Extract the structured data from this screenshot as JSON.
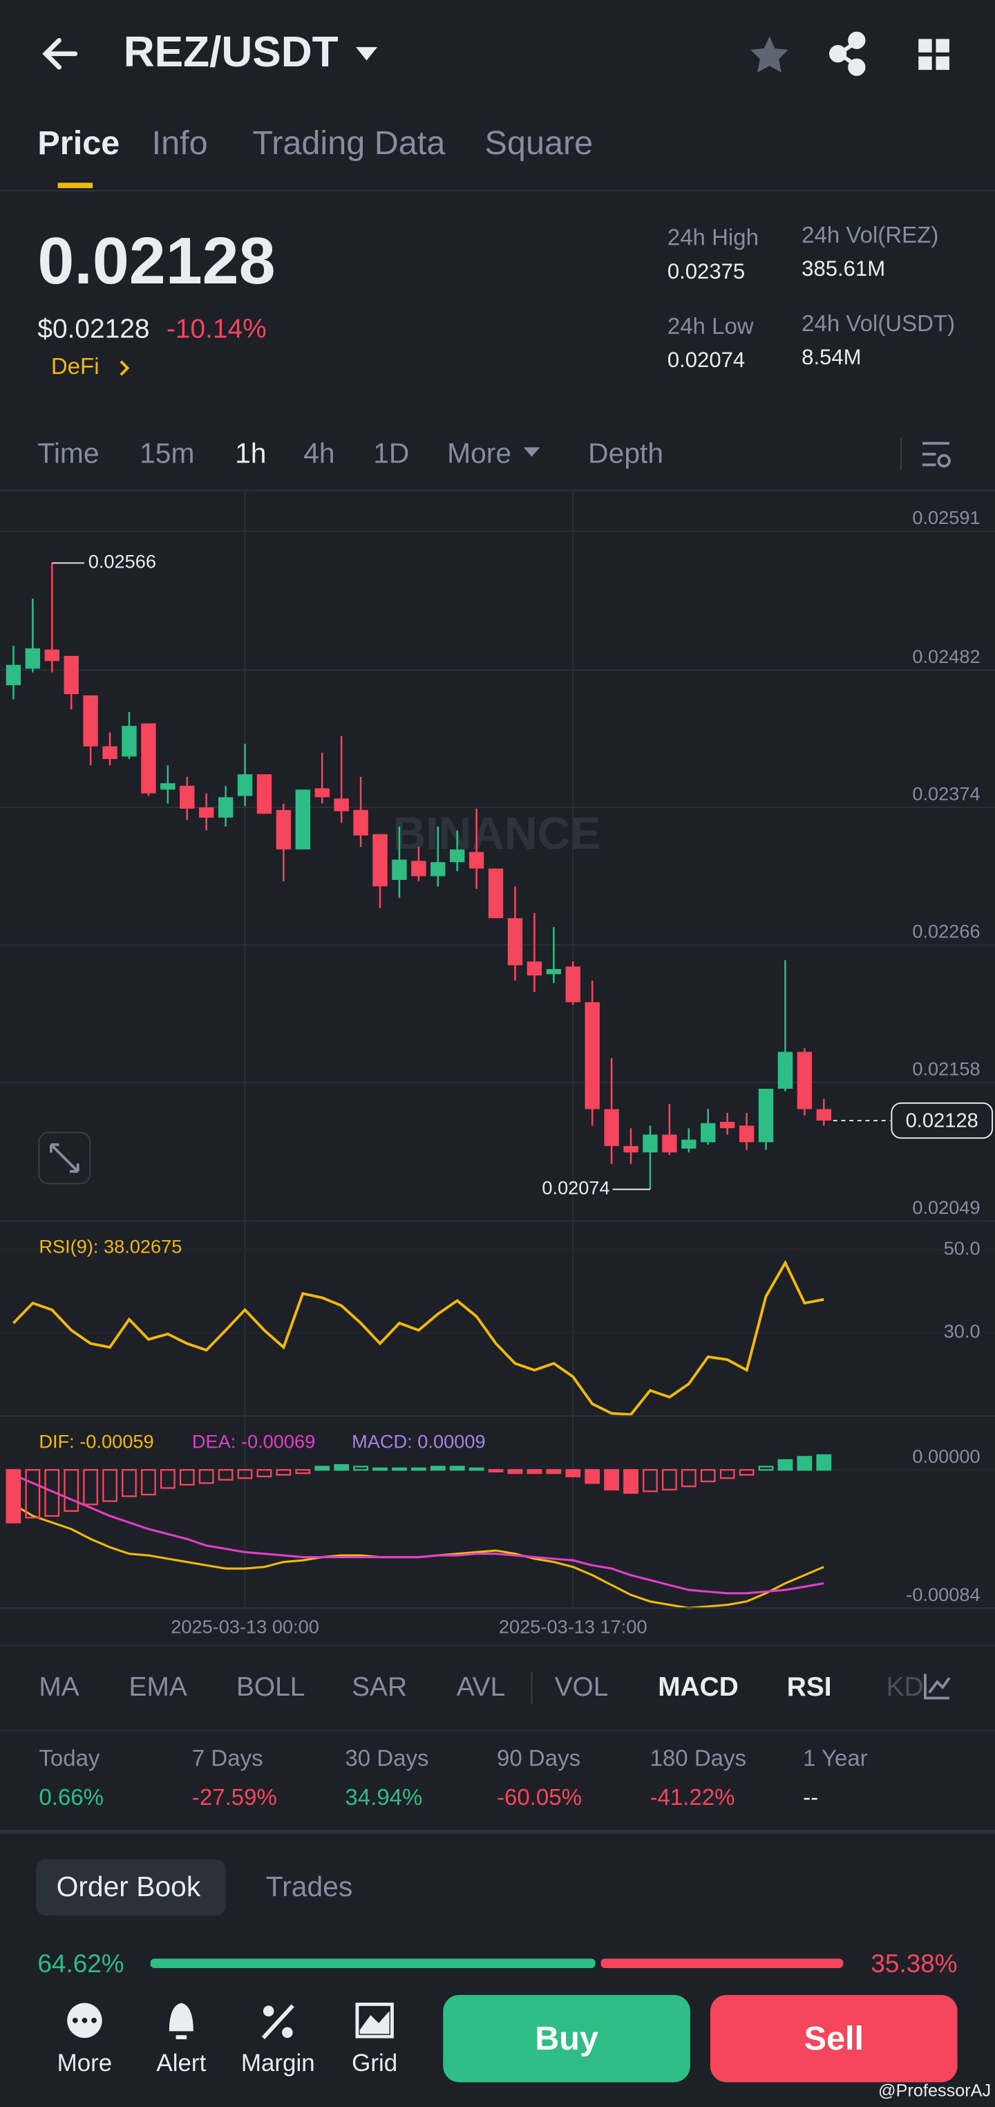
{
  "header": {
    "pair": "REZ/USDT"
  },
  "tabs": [
    "Price",
    "Info",
    "Trading Data",
    "Square"
  ],
  "ticker": {
    "price": "0.02128",
    "fiat_price": "$0.02128",
    "change": "-10.14%",
    "tag": "DeFi",
    "stats": [
      {
        "label": "24h High",
        "value": "0.02375"
      },
      {
        "label": "24h Low",
        "value": "0.02074"
      },
      {
        "label": "24h Vol(REZ)",
        "value": "385.61M"
      },
      {
        "label": "24h Vol(USDT)",
        "value": "8.54M"
      }
    ]
  },
  "intervals": [
    "Time",
    "15m",
    "1h",
    "4h",
    "1D",
    "More",
    "Depth"
  ],
  "chart_data": [
    {
      "type": "candlestick",
      "categories": [
        null,
        null,
        null,
        null,
        null,
        null,
        null,
        null,
        null,
        null,
        null,
        null,
        "2025-03-13 00:00",
        null,
        null,
        null,
        null,
        null,
        null,
        null,
        null,
        null,
        null,
        null,
        null,
        null,
        null,
        null,
        null,
        "2025-03-13 17:00",
        null,
        null,
        null,
        null,
        null,
        null,
        null,
        null,
        null,
        null,
        null,
        null,
        null
      ],
      "open": [
        0.0247,
        0.02483,
        0.02498,
        0.02493,
        0.02462,
        0.02422,
        0.02414,
        0.0244,
        0.02388,
        0.02391,
        0.02374,
        0.02366,
        0.02383,
        0.024,
        0.02372,
        0.02341,
        0.02389,
        0.02381,
        0.02372,
        0.02353,
        0.02317,
        0.02332,
        0.0232,
        0.02331,
        0.02339,
        0.02326,
        0.02287,
        0.02253,
        0.02243,
        0.02249,
        0.02221,
        0.02137,
        0.02108,
        0.02103,
        0.02117,
        0.02106,
        0.02111,
        0.02127,
        0.02124,
        0.02111,
        0.02153,
        0.02182,
        0.02137
      ],
      "high": [
        0.02501,
        0.02538,
        0.02566,
        0.02493,
        0.02462,
        0.02433,
        0.02449,
        0.0244,
        0.02407,
        0.02398,
        0.02385,
        0.02391,
        0.02424,
        0.024,
        0.02377,
        0.02388,
        0.02417,
        0.0243,
        0.02398,
        0.02353,
        0.02359,
        0.02343,
        0.02359,
        0.02356,
        0.02373,
        0.02326,
        0.02312,
        0.02291,
        0.0228,
        0.02253,
        0.02238,
        0.02177,
        0.02122,
        0.02124,
        0.02141,
        0.02122,
        0.02137,
        0.02134,
        0.02134,
        0.02153,
        0.02254,
        0.02185,
        0.02145
      ],
      "low": [
        0.02459,
        0.0248,
        0.0248,
        0.02451,
        0.02407,
        0.02407,
        0.02412,
        0.02383,
        0.02377,
        0.02364,
        0.02356,
        0.02359,
        0.02375,
        0.02369,
        0.02316,
        0.02341,
        0.02377,
        0.02362,
        0.02343,
        0.02295,
        0.02303,
        0.02316,
        0.02312,
        0.02324,
        0.0231,
        0.02287,
        0.02238,
        0.02229,
        0.02236,
        0.02219,
        0.02124,
        0.02094,
        0.02094,
        0.02074,
        0.02101,
        0.02103,
        0.02109,
        0.02117,
        0.02105,
        0.02105,
        0.02151,
        0.02132,
        0.02124
      ],
      "close": [
        0.02486,
        0.02499,
        0.02489,
        0.02463,
        0.02422,
        0.02412,
        0.02438,
        0.02385,
        0.02393,
        0.02373,
        0.02366,
        0.02382,
        0.024,
        0.02369,
        0.02341,
        0.02388,
        0.02382,
        0.02371,
        0.02352,
        0.02312,
        0.02333,
        0.0232,
        0.02331,
        0.02341,
        0.02326,
        0.02287,
        0.0225,
        0.02242,
        0.02247,
        0.02221,
        0.02137,
        0.02108,
        0.02103,
        0.02117,
        0.02103,
        0.02113,
        0.02126,
        0.02122,
        0.02111,
        0.02153,
        0.02182,
        0.02137,
        0.02128
      ],
      "ylim": [
        0.02049,
        0.02622
      ],
      "yticks": [
        0.02591,
        0.02482,
        0.02374,
        0.02266,
        0.02158,
        0.02049
      ],
      "grid": true,
      "up_color": "#2ebd85",
      "down_color": "#f6465d",
      "max_label": "0.02566",
      "min_label": "0.02074",
      "last_price_label": "0.02128",
      "watermark": "BINANCE"
    },
    {
      "type": "line",
      "title": "RSI(9): 38.02675",
      "series": [
        {
          "color": "#f0b90b",
          "values": [
            32.3,
            37.1,
            35.5,
            30.6,
            27.4,
            26.5,
            33.2,
            28.4,
            29.7,
            27.4,
            25.8,
            30.6,
            35.5,
            30.6,
            26.5,
            39.4,
            38.4,
            36.5,
            32.3,
            27.4,
            32.3,
            30.6,
            34.5,
            37.7,
            33.9,
            27.4,
            22.6,
            21.0,
            22.6,
            19.4,
            12.9,
            10.6,
            10.3,
            16.1,
            14.5,
            17.7,
            24.2,
            23.5,
            21.0,
            38.7,
            46.8,
            37.1,
            38.0
          ]
        }
      ],
      "ylim": [
        10.3,
        56.5
      ],
      "yticks": [
        {
          "value": 50,
          "label": "50.0"
        },
        {
          "value": 30,
          "label": "30.0"
        }
      ]
    },
    {
      "type": "macd",
      "series": [
        {
          "name": "DIF: -0.00059",
          "color": "#f0b90b",
          "values": [
            -0.00021,
            -0.00028,
            -0.00032,
            -0.00036,
            -0.00042,
            -0.00047,
            -0.00051,
            -0.00052,
            -0.00054,
            -0.00056,
            -0.00058,
            -0.0006,
            -0.0006,
            -0.00059,
            -0.00056,
            -0.00055,
            -0.00053,
            -0.00052,
            -0.00052,
            -0.00053,
            -0.00053,
            -0.00053,
            -0.00052,
            -0.00051,
            -0.0005,
            -0.00049,
            -0.00051,
            -0.00054,
            -0.00056,
            -0.00059,
            -0.00064,
            -0.0007,
            -0.00076,
            -0.0008,
            -0.00082,
            -0.00084,
            -0.00083,
            -0.00082,
            -0.0008,
            -0.00075,
            -0.00069,
            -0.00064,
            -0.00059
          ]
        },
        {
          "name": "DEA: -0.00069",
          "color": "#e040c8",
          "values": [
            -3e-05,
            -8e-05,
            -0.00013,
            -0.00018,
            -0.00023,
            -0.00028,
            -0.00032,
            -0.00036,
            -0.00039,
            -0.00042,
            -0.00046,
            -0.00048,
            -0.0005,
            -0.00051,
            -0.00052,
            -0.00053,
            -0.00053,
            -0.00053,
            -0.00053,
            -0.00053,
            -0.00053,
            -0.00053,
            -0.00052,
            -0.00052,
            -0.00051,
            -0.00051,
            -0.00052,
            -0.00053,
            -0.00054,
            -0.00055,
            -0.00058,
            -0.0006,
            -0.00064,
            -0.00067,
            -0.0007,
            -0.00073,
            -0.00074,
            -0.00075,
            -0.00075,
            -0.00074,
            -0.00073,
            -0.00071,
            -0.00069
          ]
        },
        {
          "name": "MACD: 0.00009",
          "color": "#a682e8",
          "type": "bar",
          "values": [
            -0.00032,
            -0.00029,
            -0.00028,
            -0.00025,
            -0.00021,
            -0.00019,
            -0.00016,
            -0.00015,
            -0.00011,
            -9e-05,
            -8e-05,
            -6e-05,
            -5e-05,
            -4e-05,
            -3e-05,
            -2e-05,
            2e-05,
            3e-05,
            2e-05,
            1e-05,
            1e-05,
            1e-05,
            2e-05,
            2e-05,
            1e-05,
            -1e-05,
            -2e-05,
            -2e-05,
            -2e-05,
            -4e-05,
            -8e-05,
            -0.00012,
            -0.00014,
            -0.00013,
            -0.00012,
            -0.0001,
            -7e-05,
            -5e-05,
            -3e-05,
            2e-05,
            6e-05,
            8e-05,
            9e-05
          ]
        }
      ],
      "up_color": "#2ebd85",
      "down_color": "#f6465d",
      "ylim": [
        -0.00084,
        0.00032
      ],
      "yticks": [
        {
          "value": 0,
          "label": "0.00000"
        },
        -0.00084
      ]
    }
  ],
  "indicators": [
    "MA",
    "EMA",
    "BOLL",
    "SAR",
    "AVL",
    "VOL",
    "MACD",
    "RSI",
    "KD"
  ],
  "performance": [
    {
      "period": "Today",
      "change": "0.66%"
    },
    {
      "period": "7 Days",
      "change": "-27.59%"
    },
    {
      "period": "30 Days",
      "change": "34.94%"
    },
    {
      "period": "90 Days",
      "change": "-60.05%"
    },
    {
      "period": "180 Days",
      "change": "-41.22%"
    },
    {
      "period": "1 Year",
      "change": "--"
    }
  ],
  "order_tabs": [
    "Order Book",
    "Trades"
  ],
  "order_ratio": {
    "values": [
      64.62,
      35.38
    ],
    "value_labels": [
      "64.62%",
      "35.38%"
    ],
    "colors": [
      "#2ebd85",
      "#f6465d"
    ]
  },
  "nav": [
    "More",
    "Alert",
    "Margin",
    "Grid"
  ],
  "actions": [
    "Buy",
    "Sell"
  ],
  "watermark": "@ProfessorAJ"
}
